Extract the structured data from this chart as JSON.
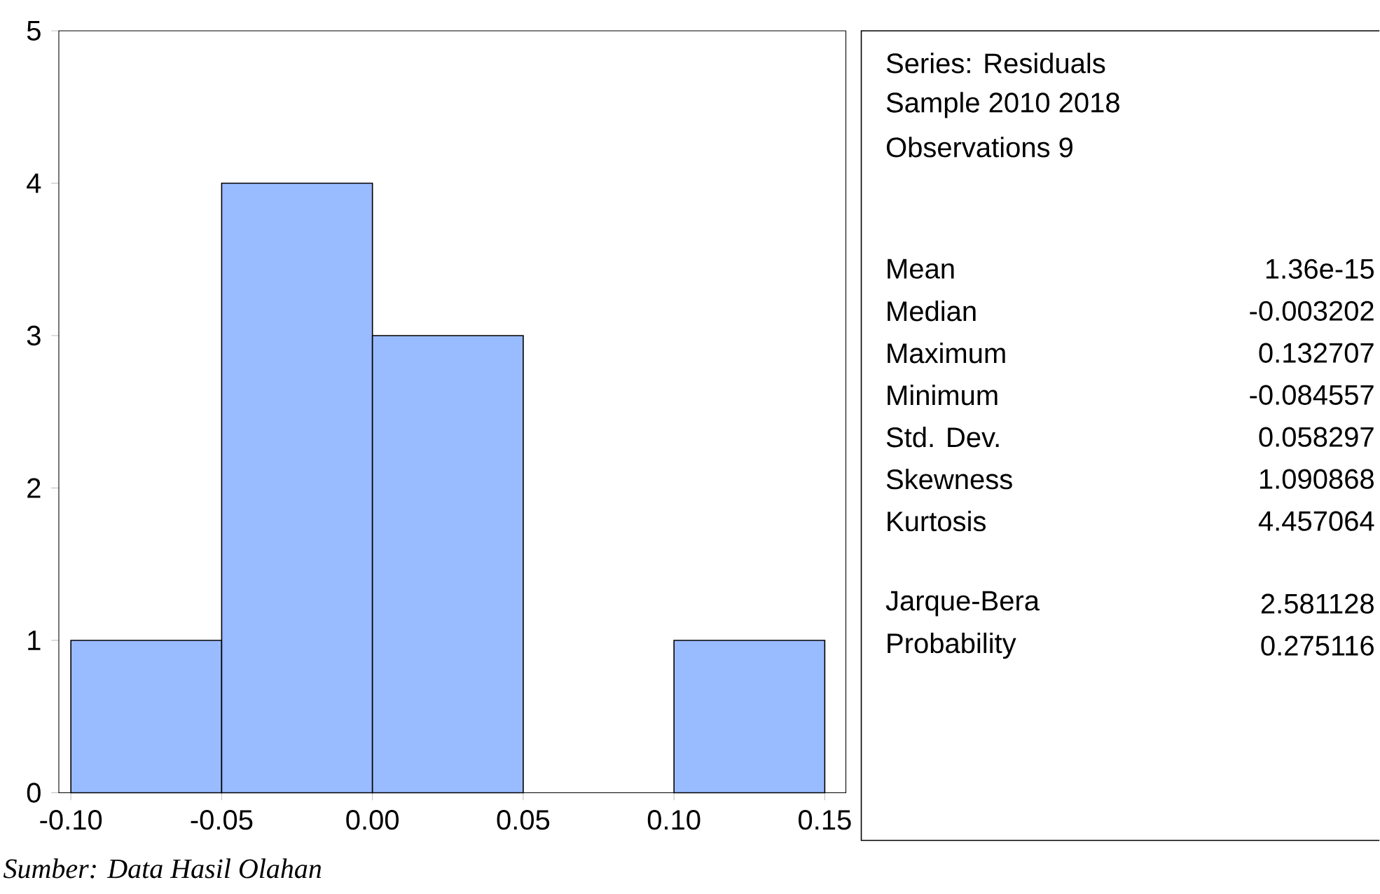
{
  "chart_data": {
    "type": "histogram",
    "bins": [
      -0.1,
      -0.05,
      0,
      0.05,
      0.1,
      0.15
    ],
    "values": [
      1,
      4,
      3,
      0,
      1
    ],
    "color": "#99bbff",
    "xlim": [
      -0.104,
      0.157
    ],
    "ylim": [
      0,
      5
    ],
    "xticks": [
      {
        "value": -0.1,
        "label": "-0.10"
      },
      {
        "value": -0.05,
        "label": "-0.05"
      },
      {
        "value": 0,
        "label": "0.00"
      },
      {
        "value": 0.05,
        "label": "0.05"
      },
      {
        "value": 0.1,
        "label": "0.10"
      },
      {
        "value": 0.15,
        "label": "0.15"
      }
    ],
    "yticks": [
      0,
      1,
      2,
      3,
      4,
      5
    ],
    "grid": false,
    "annotations": [
      "Series: Residuals",
      "Sample 2010 2018",
      "Observations 9",
      "Mean",
      "1.36e-15",
      "Median",
      "-0.003202",
      "Maximum",
      "0.132707",
      "Minimum",
      "-0.084557",
      "Std. Dev.",
      "0.058297",
      "Skewness",
      "1.090868",
      "Kurtosis",
      "4.457064",
      "Jarque-Bera",
      "2.581128",
      "Probability",
      "0.275116",
      "Sumber: Data Hasil Olahan"
    ]
  }
}
